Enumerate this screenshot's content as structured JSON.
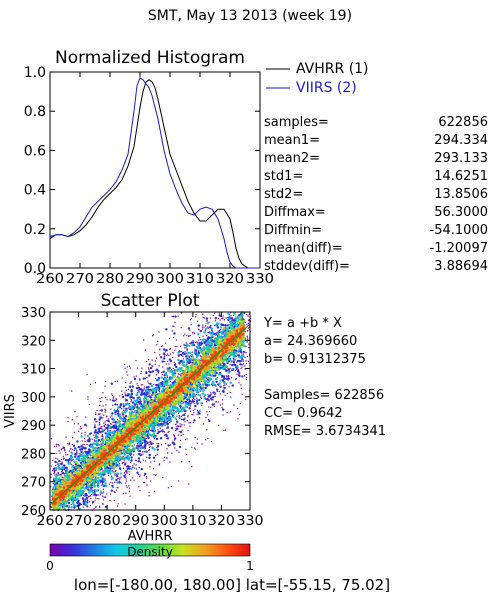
{
  "page_title": "SMT,  May 13 2013 (week 19)",
  "legend": {
    "entries": [
      {
        "name": "AVHRR (1)",
        "color": "#000000"
      },
      {
        "name": "VIIRS (2)",
        "color": "#1a1acc"
      }
    ]
  },
  "stats": [
    {
      "label": "samples=",
      "value": "622856"
    },
    {
      "label": "mean1=",
      "value": "294.334"
    },
    {
      "label": "mean2=",
      "value": "293.133"
    },
    {
      "label": "std1=",
      "value": "14.6251"
    },
    {
      "label": "std2=",
      "value": "13.8506"
    },
    {
      "label": "Diffmax=",
      "value": "56.3000"
    },
    {
      "label": "Diffmin=",
      "value": "-54.1000"
    },
    {
      "label": "mean(diff)=",
      "value": "-1.20097"
    },
    {
      "label": "stddev(diff)=",
      "value": "3.88694"
    }
  ],
  "regression": {
    "equation": "Y= a +b * X",
    "a_line": "a= 24.369660",
    "b_line": "b= 0.91312375",
    "samples_line": "Samples= 622856",
    "cc_line": "CC=  0.9642",
    "rmse_line": "RMSE= 3.6734341"
  },
  "colorbar": {
    "label": "Density",
    "min_label": "0",
    "max_label": "1",
    "colors": [
      "#7a00a8",
      "#3b2ed8",
      "#1f7fe0",
      "#10c8e8",
      "#20d0a0",
      "#60dc40",
      "#c8e020",
      "#f0a020",
      "#ff5010",
      "#e01010"
    ]
  },
  "footer": "lon=[-180.00, 180.00] lat=[-55.15, 75.02]",
  "chart_data": [
    {
      "type": "line",
      "title": "Normalized Histogram",
      "xlim": [
        260,
        330
      ],
      "ylim": [
        0,
        1
      ],
      "x_ticks": [
        "260",
        "270",
        "280",
        "290",
        "300",
        "310",
        "320",
        "330"
      ],
      "y_ticks": [
        "0.0",
        "0.2",
        "0.4",
        "0.6",
        "0.8",
        "1.0"
      ],
      "series": [
        {
          "name": "AVHRR (1)",
          "color": "#000000",
          "x": [
            260,
            262,
            264,
            266,
            268,
            270,
            272,
            274,
            276,
            278,
            280,
            282,
            284,
            286,
            288,
            290,
            291,
            292,
            293,
            294,
            295,
            296,
            298,
            300,
            302,
            304,
            306,
            308,
            310,
            312,
            314,
            316,
            318,
            320,
            321,
            322,
            323,
            324,
            326,
            328,
            330
          ],
          "y": [
            0.15,
            0.17,
            0.17,
            0.16,
            0.17,
            0.19,
            0.22,
            0.26,
            0.31,
            0.35,
            0.38,
            0.41,
            0.45,
            0.52,
            0.62,
            0.82,
            0.9,
            0.95,
            0.96,
            0.95,
            0.92,
            0.86,
            0.72,
            0.58,
            0.5,
            0.42,
            0.34,
            0.28,
            0.24,
            0.24,
            0.27,
            0.3,
            0.3,
            0.25,
            0.18,
            0.1,
            0.05,
            0.02,
            0.0,
            0.0,
            0.0
          ]
        },
        {
          "name": "VIIRS (2)",
          "color": "#1a1acc",
          "x": [
            260,
            262,
            264,
            266,
            268,
            270,
            272,
            274,
            276,
            278,
            280,
            282,
            284,
            286,
            288,
            289,
            290,
            291,
            292,
            293,
            294,
            296,
            298,
            300,
            302,
            304,
            306,
            308,
            310,
            312,
            314,
            316,
            318,
            319,
            320,
            321,
            322,
            324,
            326,
            328,
            330
          ],
          "y": [
            0.16,
            0.17,
            0.17,
            0.16,
            0.18,
            0.21,
            0.26,
            0.31,
            0.34,
            0.37,
            0.4,
            0.44,
            0.5,
            0.58,
            0.8,
            0.93,
            0.97,
            0.96,
            0.94,
            0.92,
            0.88,
            0.76,
            0.6,
            0.48,
            0.4,
            0.33,
            0.28,
            0.27,
            0.3,
            0.31,
            0.3,
            0.25,
            0.15,
            0.08,
            0.03,
            0.01,
            0.0,
            0.0,
            0.0,
            0.0,
            0.0
          ]
        }
      ]
    },
    {
      "type": "heatmap",
      "title": "Scatter Plot",
      "xlabel": "AVHRR",
      "ylabel": "VIIRS",
      "xlim": [
        260,
        330
      ],
      "ylim": [
        260,
        330
      ],
      "x_ticks": [
        "260",
        "270",
        "280",
        "290",
        "300",
        "310",
        "320",
        "330"
      ],
      "y_ticks": [
        "260",
        "270",
        "280",
        "290",
        "300",
        "310",
        "320",
        "330"
      ],
      "fit_line": {
        "a": 24.36966,
        "b": 0.91312375,
        "color": "#00a000"
      }
    }
  ]
}
